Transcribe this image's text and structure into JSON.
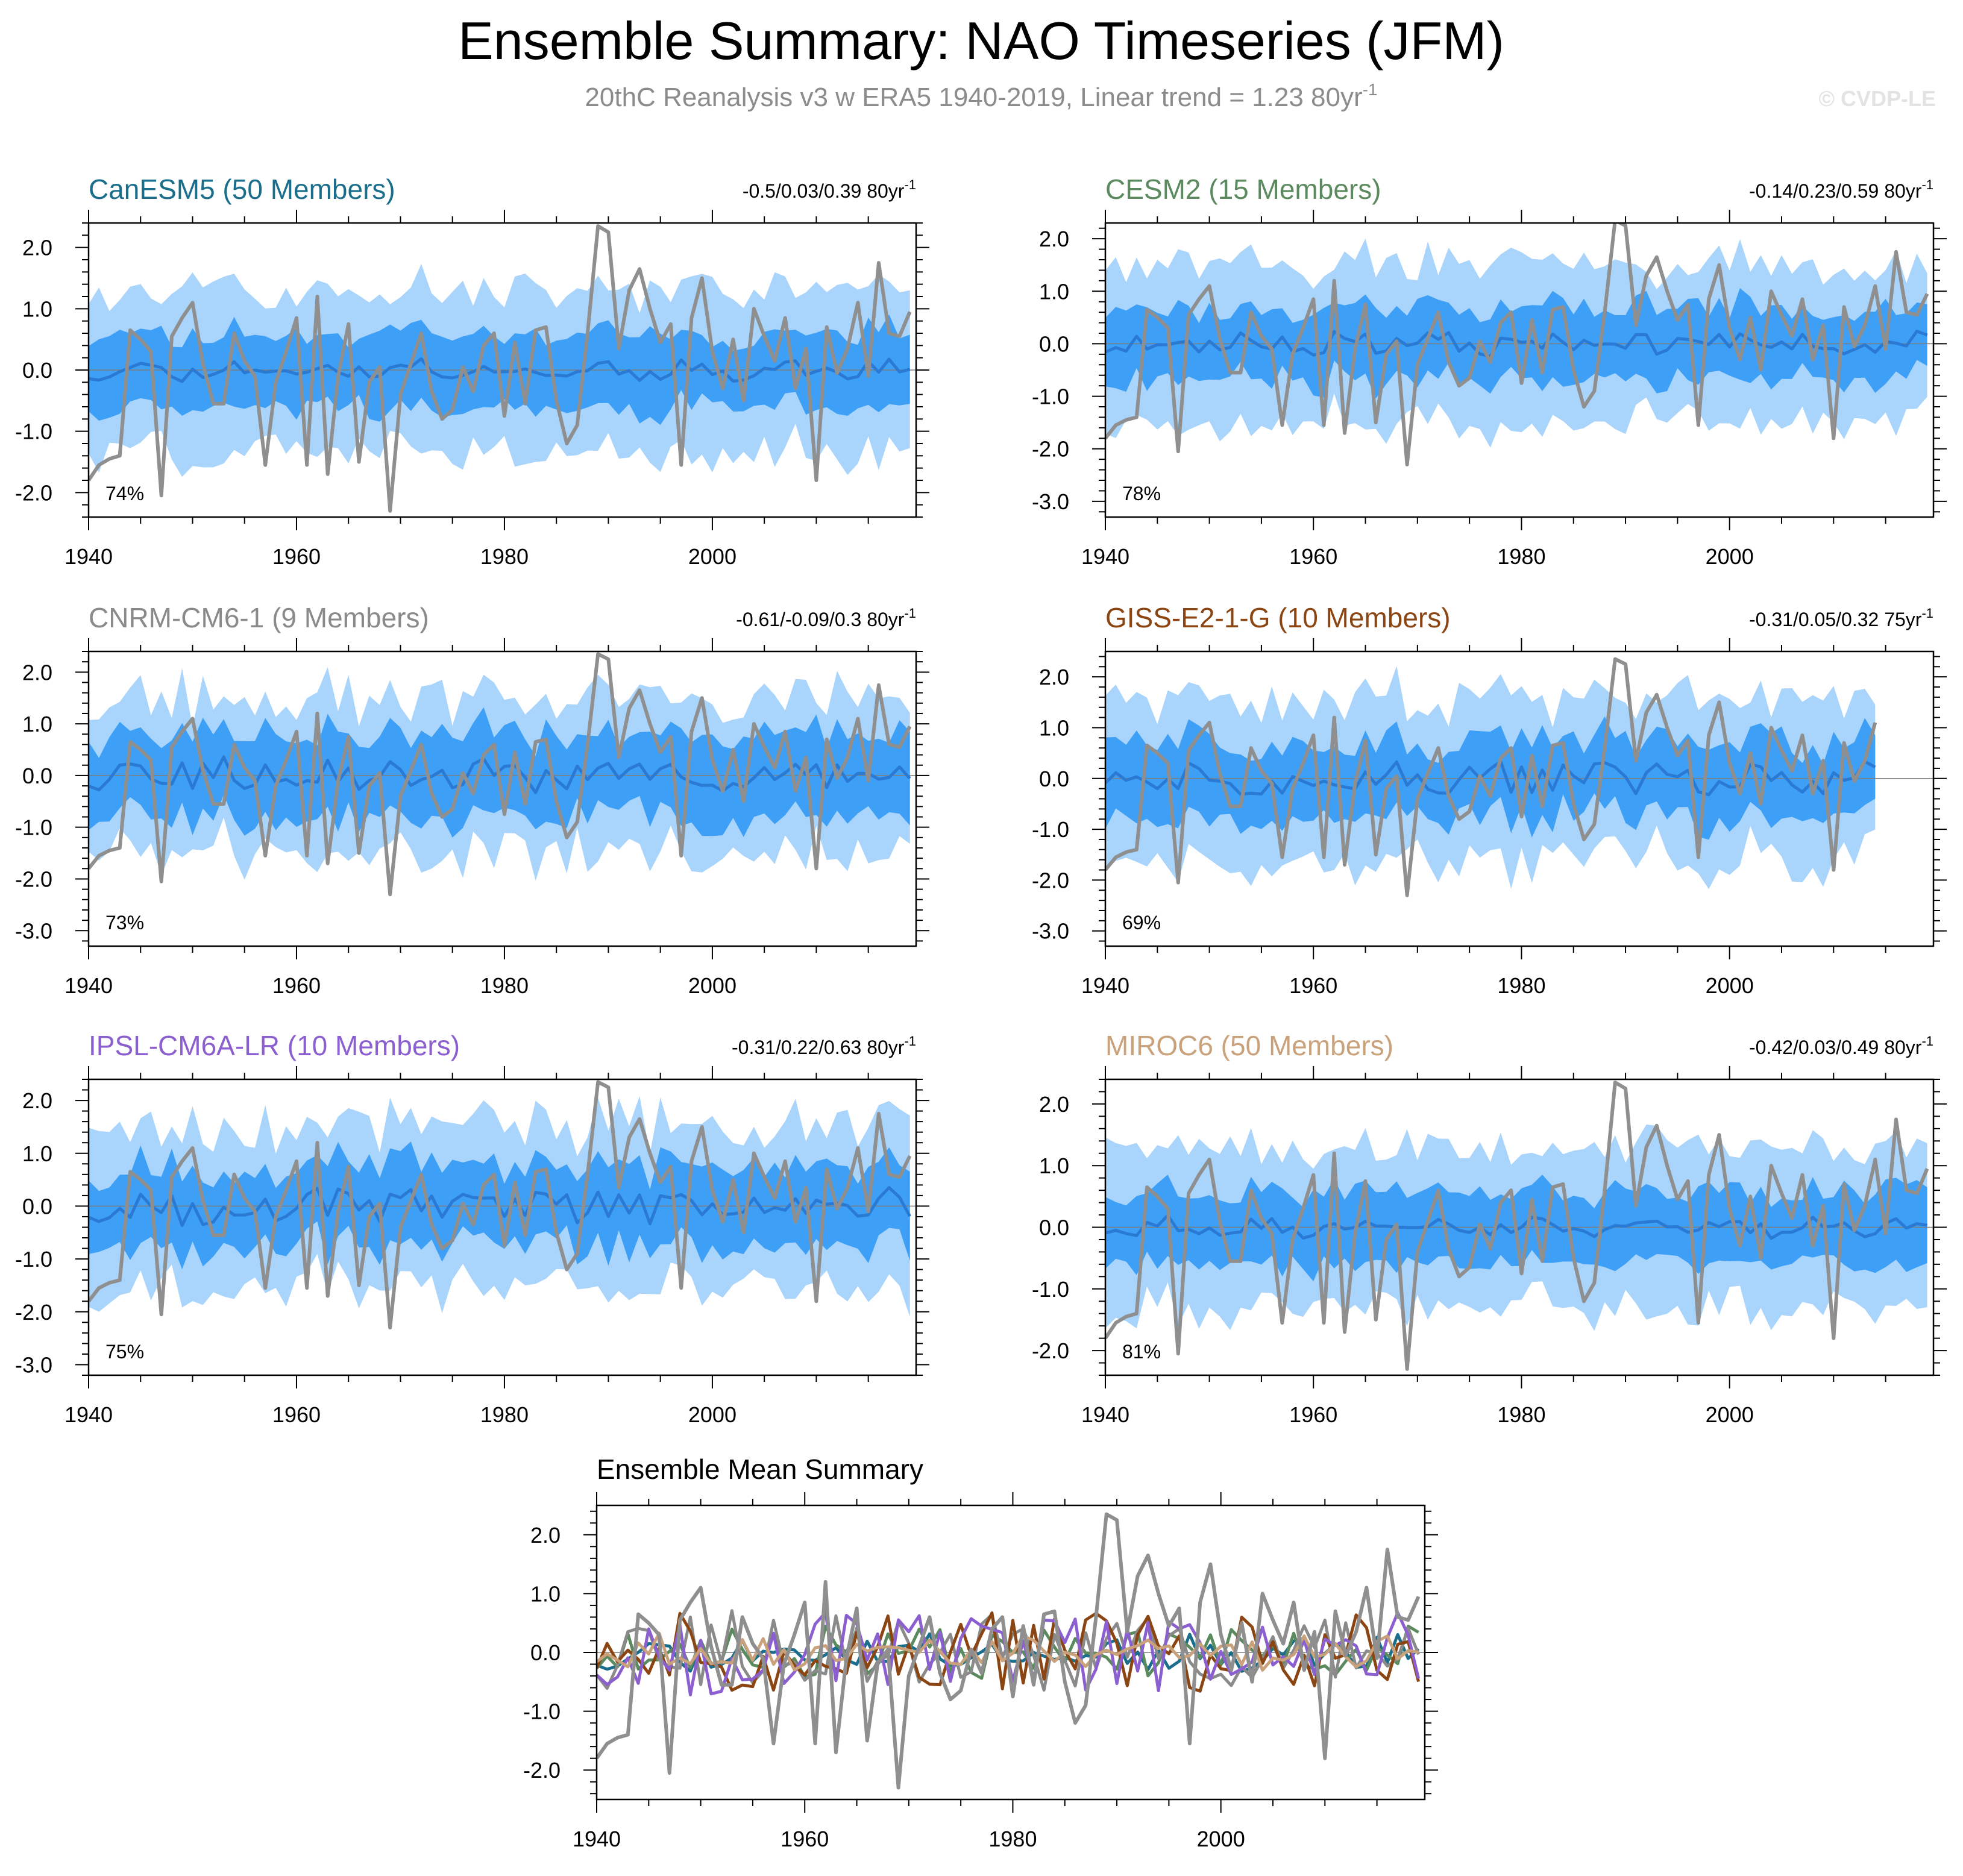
{
  "header": {
    "title": "Ensemble Summary: NAO Timeseries (JFM)",
    "subtitle": "20thC Reanalysis v3 w ERA5 1940-2019, Linear trend = 1.23 80yr",
    "subtitle_sup": "-1",
    "copyright": "© CVDP-LE"
  },
  "colors": {
    "outer_band": "#a9d4fb",
    "inner_band": "#3d9ff5",
    "ens_mean": "#2a7ad3",
    "observed": "#8f8f8f",
    "zero_line": "#7d7d7d"
  },
  "chart_data": [
    {
      "type": "line",
      "id": "canesm5",
      "title": "CanESM5 (50 Members)",
      "title_color": "#1a6e8c",
      "trend_text": "-0.5/0.03/0.39 80yr",
      "trend_sup": "-1",
      "percent": "74%",
      "x_range": [
        1940,
        2019
      ],
      "ylim": [
        -2.4,
        2.4
      ],
      "yticks": [
        -2.0,
        -1.0,
        0.0,
        1.0,
        2.0
      ],
      "ytick_labels": [
        "-2.0",
        "-1.0",
        "0.0",
        "1.0",
        "2.0"
      ],
      "xticks": [
        1940,
        1960,
        1980,
        2000
      ],
      "xtick_labels": [
        "1940",
        "1960",
        "1980",
        "2000"
      ],
      "seed": 11,
      "ens_mean_amp": 0.12,
      "inner_half": 0.6,
      "outer_half": 1.3
    },
    {
      "type": "line",
      "id": "cesm2",
      "title": "CESM2 (15 Members)",
      "title_color": "#5a8a5e",
      "trend_text": "-0.14/0.23/0.59 80yr",
      "trend_sup": "-1",
      "percent": "78%",
      "x_range": [
        1940,
        2019
      ],
      "ylim": [
        -3.3,
        2.3
      ],
      "yticks": [
        -3.0,
        -2.0,
        -1.0,
        0.0,
        1.0,
        2.0
      ],
      "ytick_labels": [
        "-3.0",
        "-2.0",
        "-1.0",
        "0.0",
        "1.0",
        "2.0"
      ],
      "xticks": [
        1940,
        1960,
        1980,
        2000
      ],
      "xtick_labels": [
        "1940",
        "1960",
        "1980",
        "2000"
      ],
      "seed": 23,
      "ens_mean_amp": 0.18,
      "inner_half": 0.7,
      "outer_half": 1.5
    },
    {
      "type": "line",
      "id": "cnrm",
      "title": "CNRM-CM6-1 (9 Members)",
      "title_color": "#8a8a8a",
      "trend_text": "-0.61/-0.09/0.3 80yr",
      "trend_sup": "-1",
      "percent": "73%",
      "x_range": [
        1940,
        2019
      ],
      "ylim": [
        -3.3,
        2.4
      ],
      "yticks": [
        -3.0,
        -2.0,
        -1.0,
        0.0,
        1.0,
        2.0
      ],
      "ytick_labels": [
        "-3.0",
        "-2.0",
        "-1.0",
        "0.0",
        "1.0",
        "2.0"
      ],
      "xticks": [
        1940,
        1960,
        1980,
        2000
      ],
      "xtick_labels": [
        "1940",
        "1960",
        "1980",
        "2000"
      ],
      "seed": 37,
      "ens_mean_amp": 0.3,
      "inner_half": 0.8,
      "outer_half": 1.5
    },
    {
      "type": "line",
      "id": "giss",
      "title": "GISS-E2-1-G (10 Members)",
      "title_color": "#8b4513",
      "trend_text": "-0.31/0.05/0.32 75yr",
      "trend_sup": "-1",
      "percent": "69%",
      "x_range": [
        1940,
        2014
      ],
      "ylim": [
        -3.3,
        2.5
      ],
      "yticks": [
        -3.0,
        -2.0,
        -1.0,
        0.0,
        1.0,
        2.0
      ],
      "ytick_labels": [
        "-3.0",
        "-2.0",
        "-1.0",
        "0.0",
        "1.0",
        "2.0"
      ],
      "xticks": [
        1940,
        1960,
        1980,
        2000
      ],
      "xtick_labels": [
        "1940",
        "1960",
        "1980",
        "2000"
      ],
      "seed": 51,
      "ens_mean_amp": 0.3,
      "inner_half": 0.75,
      "outer_half": 1.55
    },
    {
      "type": "line",
      "id": "ipsl",
      "title": "IPSL-CM6A-LR (10 Members)",
      "title_color": "#8c5fd0",
      "trend_text": "-0.31/0.22/0.63 80yr",
      "trend_sup": "-1",
      "percent": "75%",
      "x_range": [
        1940,
        2019
      ],
      "ylim": [
        -3.2,
        2.4
      ],
      "yticks": [
        -3.0,
        -2.0,
        -1.0,
        0.0,
        1.0,
        2.0
      ],
      "ytick_labels": [
        "-3.0",
        "-2.0",
        "-1.0",
        "0.0",
        "1.0",
        "2.0"
      ],
      "xticks": [
        1940,
        1960,
        1980,
        2000
      ],
      "xtick_labels": [
        "1940",
        "1960",
        "1980",
        "2000"
      ],
      "seed": 67,
      "ens_mean_amp": 0.3,
      "inner_half": 0.75,
      "outer_half": 1.55
    },
    {
      "type": "line",
      "id": "miroc6",
      "title": "MIROC6 (50 Members)",
      "title_color": "#c9a27c",
      "trend_text": "-0.42/0.03/0.49 80yr",
      "trend_sup": "-1",
      "percent": "81%",
      "x_range": [
        1940,
        2019
      ],
      "ylim": [
        -2.4,
        2.4
      ],
      "yticks": [
        -2.0,
        -1.0,
        0.0,
        1.0,
        2.0
      ],
      "ytick_labels": [
        "-2.0",
        "-1.0",
        "0.0",
        "1.0",
        "2.0"
      ],
      "xticks": [
        1940,
        1960,
        1980,
        2000
      ],
      "xtick_labels": [
        "1940",
        "1960",
        "1980",
        "2000"
      ],
      "seed": 79,
      "ens_mean_amp": 0.12,
      "inner_half": 0.6,
      "outer_half": 1.3
    },
    {
      "type": "line",
      "id": "ens_mean_summary",
      "title": "Ensemble Mean Summary",
      "title_color": "#000000",
      "x_range": [
        1940,
        2019
      ],
      "ylim": [
        -2.5,
        2.5
      ],
      "yticks": [
        -2.0,
        -1.0,
        0.0,
        1.0,
        2.0
      ],
      "ytick_labels": [
        "-2.0",
        "-1.0",
        "0.0",
        "1.0",
        "2.0"
      ],
      "xticks": [
        1940,
        1960,
        1980,
        2000
      ],
      "xtick_labels": [
        "1940",
        "1960",
        "1980",
        "2000"
      ],
      "series": [
        {
          "name": "CanESM5",
          "color": "#1a6e8c",
          "seed": 11,
          "amp": 0.12
        },
        {
          "name": "CESM2",
          "color": "#5a8a5e",
          "seed": 23,
          "amp": 0.18
        },
        {
          "name": "CNRM-CM6-1",
          "color": "#8a8a8a",
          "seed": 37,
          "amp": 0.3
        },
        {
          "name": "GISS-E2-1-G",
          "color": "#8b4513",
          "seed": 51,
          "amp": 0.3
        },
        {
          "name": "IPSL-CM6A-LR",
          "color": "#8c5fd0",
          "seed": 67,
          "amp": 0.3
        },
        {
          "name": "MIROC6",
          "color": "#c9a27c",
          "seed": 79,
          "amp": 0.12
        }
      ]
    }
  ],
  "observed": {
    "name": "20thC Reanalysis v3 w ERA5",
    "years": [
      1940,
      2019
    ],
    "values": [
      -1.8,
      -1.55,
      -1.45,
      -1.4,
      0.65,
      0.5,
      0.3,
      -2.05,
      0.55,
      0.85,
      1.1,
      0.1,
      -0.55,
      -0.55,
      0.6,
      0.15,
      -0.1,
      -1.55,
      -0.2,
      0.3,
      0.85,
      -1.55,
      1.2,
      -1.7,
      -0.1,
      0.75,
      -1.5,
      -0.2,
      0.05,
      -2.3,
      -0.4,
      0.1,
      0.6,
      -0.35,
      -0.8,
      -0.65,
      0.05,
      -0.35,
      0.4,
      0.6,
      -0.75,
      0.45,
      -0.55,
      0.65,
      0.7,
      -0.5,
      -1.2,
      -0.9,
      0.6,
      2.35,
      2.25,
      0.35,
      1.3,
      1.65,
      1.0,
      0.45,
      0.75,
      -1.55,
      0.85,
      1.5,
      0.3,
      -0.3,
      0.5,
      -0.5,
      1.0,
      0.55,
      0.15,
      0.85,
      -0.3,
      0.35,
      -1.8,
      0.7,
      -0.05,
      0.35,
      1.1,
      -0.1,
      1.75,
      0.6,
      0.55,
      0.95
    ]
  }
}
